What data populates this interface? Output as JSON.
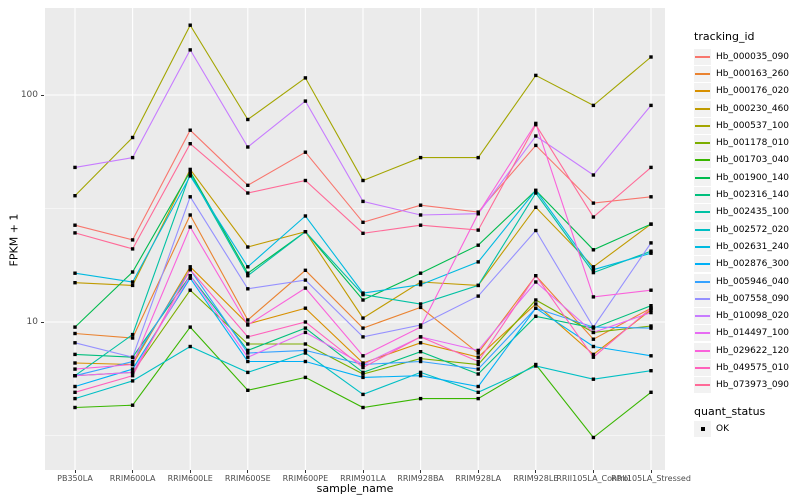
{
  "chart_data": {
    "type": "line",
    "title": "",
    "xlabel": "sample_name",
    "ylabel": "FPKM + 1",
    "y_scale": "log10",
    "y_ticks": [
      {
        "value": 10,
        "label": "10"
      },
      {
        "value": 100,
        "label": "100"
      }
    ],
    "y_minor_gridlines": [
      3.162,
      31.62
    ],
    "ylim_log": [
      0.35,
      2.35
    ],
    "grid": "on",
    "legend_position": "right",
    "panel_bg": "#EBEBEB",
    "grid_color": "#FFFFFF",
    "tick_text_color": "#4D4D4D",
    "point_shape": "square",
    "point_color": "#000000",
    "categories": [
      "PB350LA",
      "RRIM600LA",
      "RRIM600LE",
      "RRIM600SE",
      "RRIM600PE",
      "RRIM901LA",
      "RRIM928BA",
      "RRIM928LA",
      "RRIM928LE",
      "RRII105LA_Control",
      "RRII105LA_Stressed"
    ],
    "series": [
      {
        "name": "Hb_000035_090",
        "color": "#F8766D",
        "values": [
          26.7,
          23,
          70,
          40,
          56,
          27.5,
          32.7,
          30.5,
          60,
          33.4,
          35.6
        ]
      },
      {
        "name": "Hb_000163_260",
        "color": "#EA8331",
        "values": [
          8.9,
          8.5,
          29.6,
          10.2,
          16.9,
          9.4,
          11.6,
          7.3,
          16,
          8.4,
          11.5
        ]
      },
      {
        "name": "Hb_000176_020",
        "color": "#D89000",
        "values": [
          6.6,
          6.5,
          17.5,
          9.8,
          11.5,
          6.6,
          8.1,
          7,
          12,
          7.2,
          11.3
        ]
      },
      {
        "name": "Hb_000230_460",
        "color": "#C09B00",
        "values": [
          14.9,
          14.5,
          47,
          21.4,
          25,
          10.4,
          15,
          14.5,
          32,
          17.5,
          27
        ]
      },
      {
        "name": "Hb_000537_100",
        "color": "#A3A500",
        "values": [
          36,
          65,
          203,
          78,
          119,
          42,
          53,
          53,
          122,
          90,
          147
        ]
      },
      {
        "name": "Hb_001178_010",
        "color": "#7CAE00",
        "values": [
          5.8,
          6,
          13.8,
          8,
          8,
          5.9,
          6.9,
          6.5,
          12.5,
          9,
          9.6
        ]
      },
      {
        "name": "Hb_001703_040",
        "color": "#39B600",
        "values": [
          4.2,
          4.3,
          9.5,
          5,
          5.7,
          4.2,
          4.6,
          4.6,
          6.5,
          3.1,
          4.9
        ]
      },
      {
        "name": "Hb_001900_140",
        "color": "#00BB4E",
        "values": [
          9.5,
          16.6,
          46,
          16.4,
          25,
          12.5,
          16.4,
          21.8,
          38,
          20.8,
          27
        ]
      },
      {
        "name": "Hb_002316_140",
        "color": "#00BF7D",
        "values": [
          7.2,
          7,
          16,
          7.5,
          9.4,
          6,
          7.4,
          5.9,
          10.6,
          9.4,
          11.8
        ]
      },
      {
        "name": "Hb_002435_100",
        "color": "#00C1A3",
        "values": [
          5.8,
          8.8,
          45,
          16,
          25,
          13.2,
          12,
          14.5,
          37,
          16.5,
          20.5
        ]
      },
      {
        "name": "Hb_002572_020",
        "color": "#00BFC4",
        "values": [
          4.6,
          5.5,
          7.8,
          6,
          7.3,
          4.8,
          6,
          4.9,
          6.4,
          5.6,
          6.1
        ]
      },
      {
        "name": "Hb_002631_240",
        "color": "#00BAE0",
        "values": [
          16.4,
          15,
          44,
          17.5,
          29.3,
          13.4,
          14.6,
          18.4,
          38,
          17,
          20.1
        ]
      },
      {
        "name": "Hb_002876_300",
        "color": "#00B0F6",
        "values": [
          5.2,
          6.2,
          15.6,
          6.7,
          6.7,
          5.7,
          5.8,
          5.2,
          11.5,
          7.8,
          7.1
        ]
      },
      {
        "name": "Hb_005946_040",
        "color": "#35A2FF",
        "values": [
          5.8,
          6.7,
          17,
          7.3,
          7.5,
          6.5,
          6.7,
          6.2,
          11.5,
          9.5,
          9.4
        ]
      },
      {
        "name": "Hb_007558_090",
        "color": "#9590FF",
        "values": [
          8.1,
          7,
          35.6,
          14,
          15.3,
          8.6,
          9.7,
          13,
          25.3,
          9.5,
          22.3
        ]
      },
      {
        "name": "Hb_010098_020",
        "color": "#C77CFF",
        "values": [
          48,
          53,
          158,
          59,
          94,
          34,
          29.6,
          30,
          66,
          44.4,
          90
        ]
      },
      {
        "name": "Hb_014497_100",
        "color": "#E76BF3",
        "values": [
          5.8,
          6,
          16,
          7,
          9,
          6.5,
          8.6,
          7.5,
          15,
          9,
          11
        ]
      },
      {
        "name": "Hb_029622_120",
        "color": "#FA62DB",
        "values": [
          6.2,
          6.5,
          26.2,
          9.7,
          14.1,
          7.1,
          9.5,
          30,
          75,
          12.9,
          13.8
        ]
      },
      {
        "name": "Hb_049575_010",
        "color": "#FF62BC",
        "values": [
          4.9,
          5.8,
          17,
          8.6,
          10,
          6.3,
          8.6,
          6.7,
          16,
          7,
          11.5
        ]
      },
      {
        "name": "Hb_073973_090",
        "color": "#FF6A98",
        "values": [
          24.7,
          21,
          61,
          37,
          42,
          24.6,
          26.7,
          25.4,
          74,
          29,
          48
        ]
      }
    ],
    "legends": {
      "tracking": {
        "title": "tracking_id"
      },
      "quant": {
        "title": "quant_status",
        "items": [
          {
            "label": "OK"
          }
        ]
      }
    }
  }
}
